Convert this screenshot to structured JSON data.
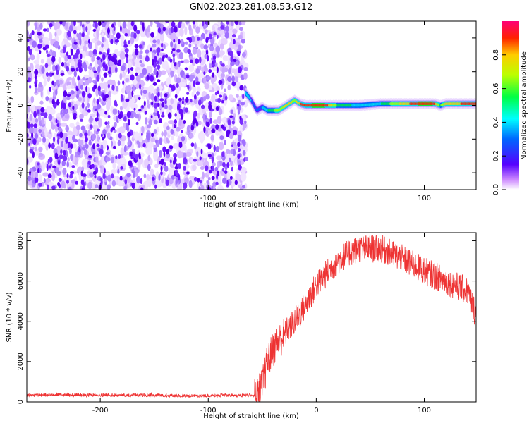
{
  "figure": {
    "title": "GN02.2023.281.08.53.G12"
  },
  "chart_data": [
    {
      "type": "heatmap",
      "title": "",
      "xlabel": "Height of straight line (km)",
      "ylabel": "Frequency (Hz)",
      "xlim": [
        -268,
        148
      ],
      "ylim": [
        -50,
        50
      ],
      "xticks": [
        -200,
        -100,
        0,
        100
      ],
      "yticks": [
        -40,
        -20,
        0,
        20,
        40
      ],
      "noise_region_x": [
        -268,
        -65
      ],
      "ridge": {
        "x": [
          -65,
          -60,
          -55,
          -50,
          -45,
          -40,
          -35,
          -30,
          -25,
          -20,
          -15,
          -10,
          -5,
          0,
          10,
          20,
          40,
          60,
          80,
          100,
          110,
          115,
          120,
          148
        ],
        "freq": [
          7,
          3,
          -3,
          -1,
          -3,
          -3,
          -3,
          -1,
          1,
          3,
          1,
          0,
          0,
          0,
          0,
          0,
          0,
          1,
          1,
          1,
          1,
          0,
          1,
          1
        ],
        "amplitude": [
          0.4,
          0.35,
          0.3,
          0.35,
          0.5,
          0.6,
          0.7,
          0.75,
          0.8,
          0.7,
          0.85,
          0.9,
          0.9,
          0.95,
          0.9,
          0.6,
          0.45,
          0.5,
          0.8,
          0.95,
          0.9,
          0.6,
          0.8,
          0.9
        ]
      },
      "colorbar": {
        "label": "Normalized spectral amplitude",
        "range": [
          0,
          1
        ],
        "ticks": [
          "0.0",
          "0.2",
          "0.4",
          "0.6",
          "0.8"
        ]
      }
    },
    {
      "type": "line",
      "title": "",
      "xlabel": "Height of straight line (km)",
      "ylabel": "SNR (10 * v/v)",
      "xlim": [
        -268,
        148
      ],
      "ylim": [
        0,
        8400
      ],
      "xticks": [
        -200,
        -100,
        0,
        100
      ],
      "yticks": [
        0,
        2000,
        4000,
        6000,
        8000
      ],
      "color": "#ee3333",
      "series": [
        {
          "x": [
            -268,
            -240,
            -200,
            -160,
            -120,
            -90,
            -70,
            -55,
            -50,
            -45,
            -40,
            -35,
            -30,
            -25,
            -20,
            -10,
            0,
            10,
            20,
            30,
            40,
            60,
            80,
            100,
            120,
            140,
            148
          ],
          "y": [
            300,
            320,
            300,
            300,
            280,
            280,
            290,
            320,
            800,
            2000,
            2600,
            3000,
            3300,
            3700,
            4000,
            4800,
            5800,
            6400,
            7000,
            7400,
            7600,
            7600,
            7100,
            6500,
            6000,
            5500,
            4300
          ]
        }
      ]
    }
  ]
}
